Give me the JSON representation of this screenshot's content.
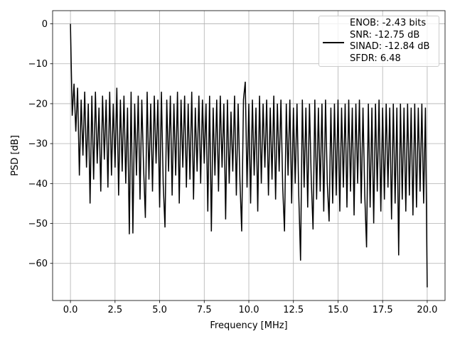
{
  "chart_data": {
    "type": "line",
    "xlabel": "Frequency [MHz]",
    "ylabel": "PSD [dB]",
    "x": [
      0,
      0.1,
      0.2,
      0.3,
      0.4,
      0.5,
      0.6,
      0.7,
      0.8,
      0.9,
      1,
      1.1,
      1.2,
      1.3,
      1.4,
      1.5,
      1.6,
      1.7,
      1.8,
      1.9,
      2,
      2.1,
      2.2,
      2.3,
      2.4,
      2.5,
      2.6,
      2.7,
      2.8,
      2.9,
      3,
      3.1,
      3.2,
      3.3,
      3.4,
      3.5,
      3.6,
      3.7,
      3.8,
      3.9,
      4,
      4.1,
      4.2,
      4.3,
      4.4,
      4.5,
      4.6,
      4.7,
      4.8,
      4.9,
      5,
      5.1,
      5.2,
      5.3,
      5.4,
      5.5,
      5.6,
      5.7,
      5.8,
      5.9,
      6,
      6.1,
      6.2,
      6.3,
      6.4,
      6.5,
      6.6,
      6.7,
      6.8,
      6.9,
      7,
      7.1,
      7.2,
      7.3,
      7.4,
      7.5,
      7.6,
      7.7,
      7.8,
      7.9,
      8,
      8.1,
      8.2,
      8.3,
      8.4,
      8.5,
      8.6,
      8.7,
      8.8,
      8.9,
      9,
      9.1,
      9.2,
      9.3,
      9.4,
      9.5,
      9.6,
      9.7,
      9.8,
      9.9,
      10,
      10.1,
      10.2,
      10.3,
      10.4,
      10.5,
      10.6,
      10.7,
      10.8,
      10.9,
      11,
      11.1,
      11.2,
      11.3,
      11.4,
      11.5,
      11.6,
      11.7,
      11.8,
      11.9,
      12,
      12.1,
      12.2,
      12.3,
      12.4,
      12.5,
      12.6,
      12.7,
      12.8,
      12.9,
      13,
      13.1,
      13.2,
      13.3,
      13.4,
      13.5,
      13.6,
      13.7,
      13.8,
      13.9,
      14,
      14.1,
      14.2,
      14.3,
      14.4,
      14.5,
      14.6,
      14.7,
      14.8,
      14.9,
      15,
      15.1,
      15.2,
      15.3,
      15.4,
      15.5,
      15.6,
      15.7,
      15.8,
      15.9,
      16,
      16.1,
      16.2,
      16.3,
      16.4,
      16.5,
      16.6,
      16.7,
      16.8,
      16.9,
      17,
      17.1,
      17.2,
      17.3,
      17.4,
      17.5,
      17.6,
      17.7,
      17.8,
      17.9,
      18,
      18.1,
      18.2,
      18.3,
      18.4,
      18.5,
      18.6,
      18.7,
      18.8,
      18.9,
      19,
      19.1,
      19.2,
      19.3,
      19.4,
      19.5,
      19.6,
      19.7,
      19.8,
      19.9,
      20
    ],
    "series": [
      {
        "name": "ENOB: -2.43 bits\nSNR: -12.75 dB\nSINAD: -12.84 dB\nSFDR: 6.48",
        "color": "#000000",
        "values": [
          0,
          -23,
          -15,
          -27,
          -16,
          -38,
          -19,
          -33,
          -17,
          -36,
          -20,
          -45,
          -18,
          -39,
          -17,
          -35,
          -21,
          -42,
          -18,
          -34,
          -19,
          -41,
          -17,
          -38,
          -20,
          -36,
          -16,
          -43,
          -19,
          -37,
          -18,
          -40,
          -21,
          -52.7,
          -17,
          -52.5,
          -20,
          -38,
          -18,
          -44,
          -19,
          -36,
          -48.6,
          -17,
          -39,
          -20,
          -42,
          -18,
          -35,
          -19,
          -46,
          -17,
          -40,
          -51,
          -19,
          -37,
          -18,
          -43,
          -20,
          -38,
          -17,
          -45,
          -19,
          -36,
          -18,
          -41,
          -20,
          -39,
          -17,
          -44,
          -21,
          -37,
          -18,
          -40,
          -19,
          -35,
          -20,
          -47,
          -18,
          -52,
          -21,
          -38,
          -19,
          -42,
          -18,
          -36,
          -20,
          -49,
          -19,
          -40,
          -22,
          -37,
          -18,
          -43,
          -20,
          -39,
          -52,
          -19,
          -14.5,
          -41,
          -20,
          -45,
          -19,
          -38,
          -21,
          -47,
          -18,
          -40,
          -20,
          -36,
          -19,
          -43,
          -21,
          -39,
          -18,
          -44,
          -20,
          -37,
          -19,
          -41,
          -52,
          -20,
          -38,
          -19,
          -45,
          -21,
          -40,
          -20,
          -43,
          -59.3,
          -19,
          -41,
          -21,
          -46,
          -20,
          -39,
          -51.5,
          -19,
          -44,
          -21,
          -42,
          -20,
          -47,
          -19,
          -40,
          -49.5,
          -21,
          -45,
          -20,
          -43,
          -19,
          -47,
          -21,
          -41,
          -20,
          -46,
          -19,
          -42,
          -21,
          -48,
          -20,
          -40,
          -19,
          -45,
          -21,
          -43,
          -56,
          -20,
          -46,
          -21,
          -50,
          -20,
          -42,
          -19,
          -47,
          -21,
          -44,
          -20,
          -41,
          -21,
          -49,
          -20,
          -45,
          -21,
          -58,
          -20,
          -44,
          -21,
          -47,
          -20,
          -43,
          -21,
          -48,
          -20,
          -46,
          -21,
          -42,
          -20,
          -45,
          -21,
          -66
        ]
      }
    ],
    "xlim": [
      -1,
      21
    ],
    "xticks": [
      {
        "value": 0,
        "label": "0.0"
      },
      2.5,
      {
        "value": 5,
        "label": "5.0"
      },
      7.5,
      {
        "value": 10,
        "label": "10.0"
      },
      12.5,
      {
        "value": 15,
        "label": "15.0"
      },
      17.5,
      {
        "value": 20,
        "label": "20.0"
      }
    ],
    "ylim": [
      -69.3,
      3.3
    ],
    "yticks": [
      {
        "value": -60,
        "label": "−60"
      },
      {
        "value": -50,
        "label": "−50"
      },
      {
        "value": -40,
        "label": "−40"
      },
      {
        "value": -30,
        "label": "−30"
      },
      {
        "value": -20,
        "label": "−20"
      },
      {
        "value": -10,
        "label": "−10"
      },
      0
    ],
    "grid": true,
    "legend": "upper right"
  }
}
